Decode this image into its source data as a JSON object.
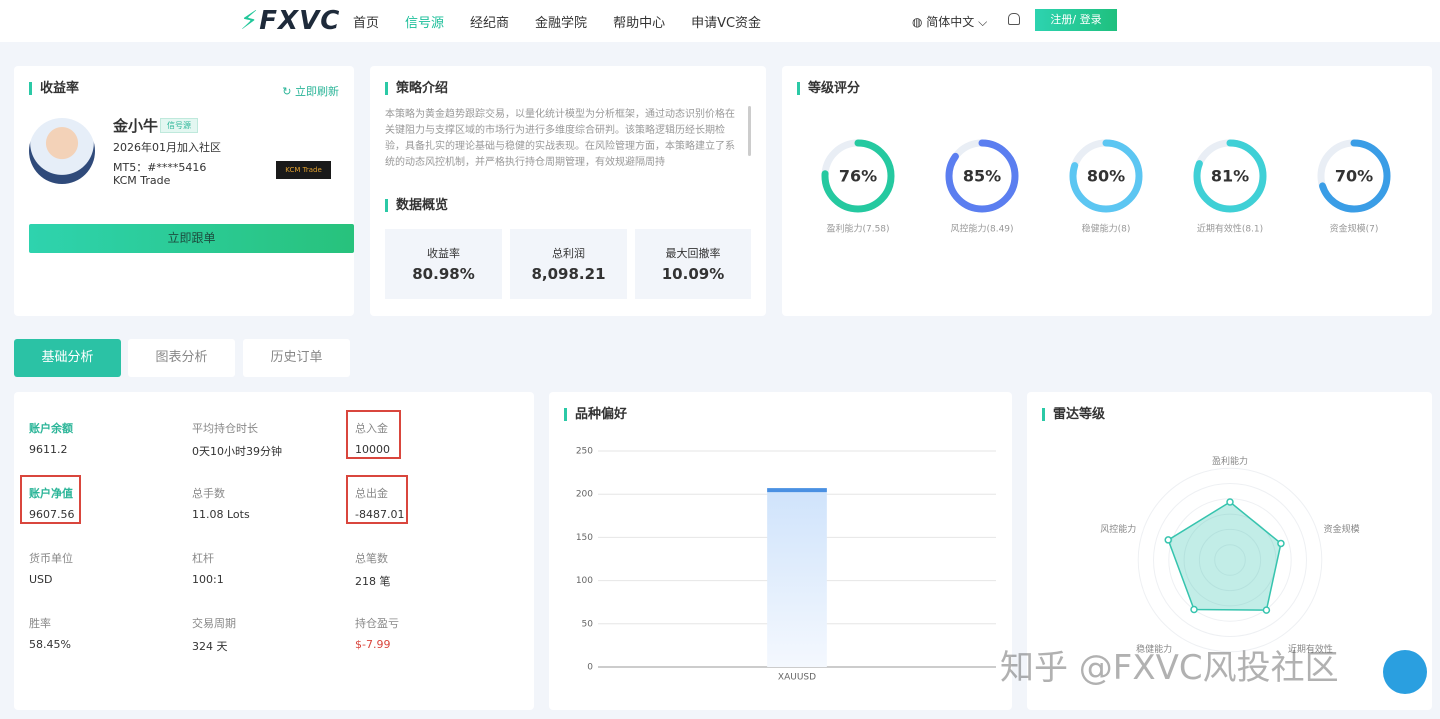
{
  "nav": {
    "logo": "FXVC",
    "items": [
      "首页",
      "信号源",
      "经纪商",
      "金融学院",
      "帮助中心",
      "申请VC资金"
    ],
    "language": "简体中文",
    "login": "注册/ 登录"
  },
  "profile": {
    "title": "收益率",
    "refresh": "立即刷新",
    "name": "金小牛",
    "badge": "信号源",
    "joined": "2026年01月加入社区",
    "account": "MT5：#****5416",
    "broker": "KCM Trade",
    "broker_logo": "KCM Trade",
    "follow": "立即跟单"
  },
  "strategy": {
    "title": "策略介绍",
    "text": "本策略为黄金趋势跟踪交易，以量化统计模型为分析框架，通过动态识别价格在关键阻力与支撑区域的市场行为进行多维度综合研判。该策略逻辑历经长期检验，具备扎实的理论基础与稳健的实战表现。在风险管理方面，本策略建立了系统的动态风控机制，并严格执行持仓周期管理，有效规避隔周持",
    "overview_title": "数据概览",
    "stats": [
      {
        "label": "收益率",
        "value": "80.98%"
      },
      {
        "label": "总利润",
        "value": "8,098.21"
      },
      {
        "label": "最大回撤率",
        "value": "10.09%"
      }
    ]
  },
  "tabs": [
    "基础分析",
    "图表分析",
    "历史订单"
  ],
  "account": {
    "items": [
      {
        "label": "账户余额",
        "value": "9611.2"
      },
      {
        "label": "平均持仓时长",
        "value": "0天10小时39分钟"
      },
      {
        "label": "总入金",
        "value": "10000"
      },
      {
        "label": "账户净值",
        "value": "9607.56"
      },
      {
        "label": "总手数",
        "value": "11.08 Lots"
      },
      {
        "label": "总出金",
        "value": "-8487.01"
      },
      {
        "label": "货币单位",
        "value": "USD"
      },
      {
        "label": "杠杆",
        "value": "100:1"
      },
      {
        "label": "总笔数",
        "value": "218 笔"
      },
      {
        "label": "胜率",
        "value": "58.45%"
      },
      {
        "label": "交易周期",
        "value": "324 天"
      },
      {
        "label": "持仓盈亏",
        "value": "$-7.99"
      }
    ]
  },
  "watermark": "知乎 @FXVC风投社区",
  "chart_data": [
    {
      "type": "gauge",
      "title": "等级评分",
      "categories": [
        "盈利能力(7.58)",
        "风控能力(8.49)",
        "稳健能力(8)",
        "近期有效性(8.1)",
        "资金规模(7)"
      ],
      "values": [
        76,
        85,
        80,
        81,
        70
      ],
      "value_labels": [
        "76%",
        "85%",
        "80%",
        "81%",
        "70%"
      ],
      "colors": [
        "#25c9a0",
        "#5b7ef0",
        "#5cc6f2",
        "#3fd0d6",
        "#3a9de6"
      ],
      "ylim": [
        0,
        100
      ]
    },
    {
      "type": "bar",
      "title": "品种偏好",
      "categories": [
        "XAUUSD"
      ],
      "values": [
        207
      ],
      "color": "#4a90e2",
      "ylim": [
        0,
        250
      ],
      "yticks": [
        0,
        50,
        100,
        150,
        200,
        250
      ],
      "grid": true
    },
    {
      "type": "radar",
      "title": "雷达等级",
      "categories": [
        "盈利能力",
        "资金规模",
        "近期有效性",
        "稳健能力",
        "风控能力"
      ],
      "values": [
        7.58,
        7,
        8.1,
        8,
        8.49
      ],
      "rlim": [
        0,
        10
      ],
      "color": "#36c4ae"
    }
  ]
}
